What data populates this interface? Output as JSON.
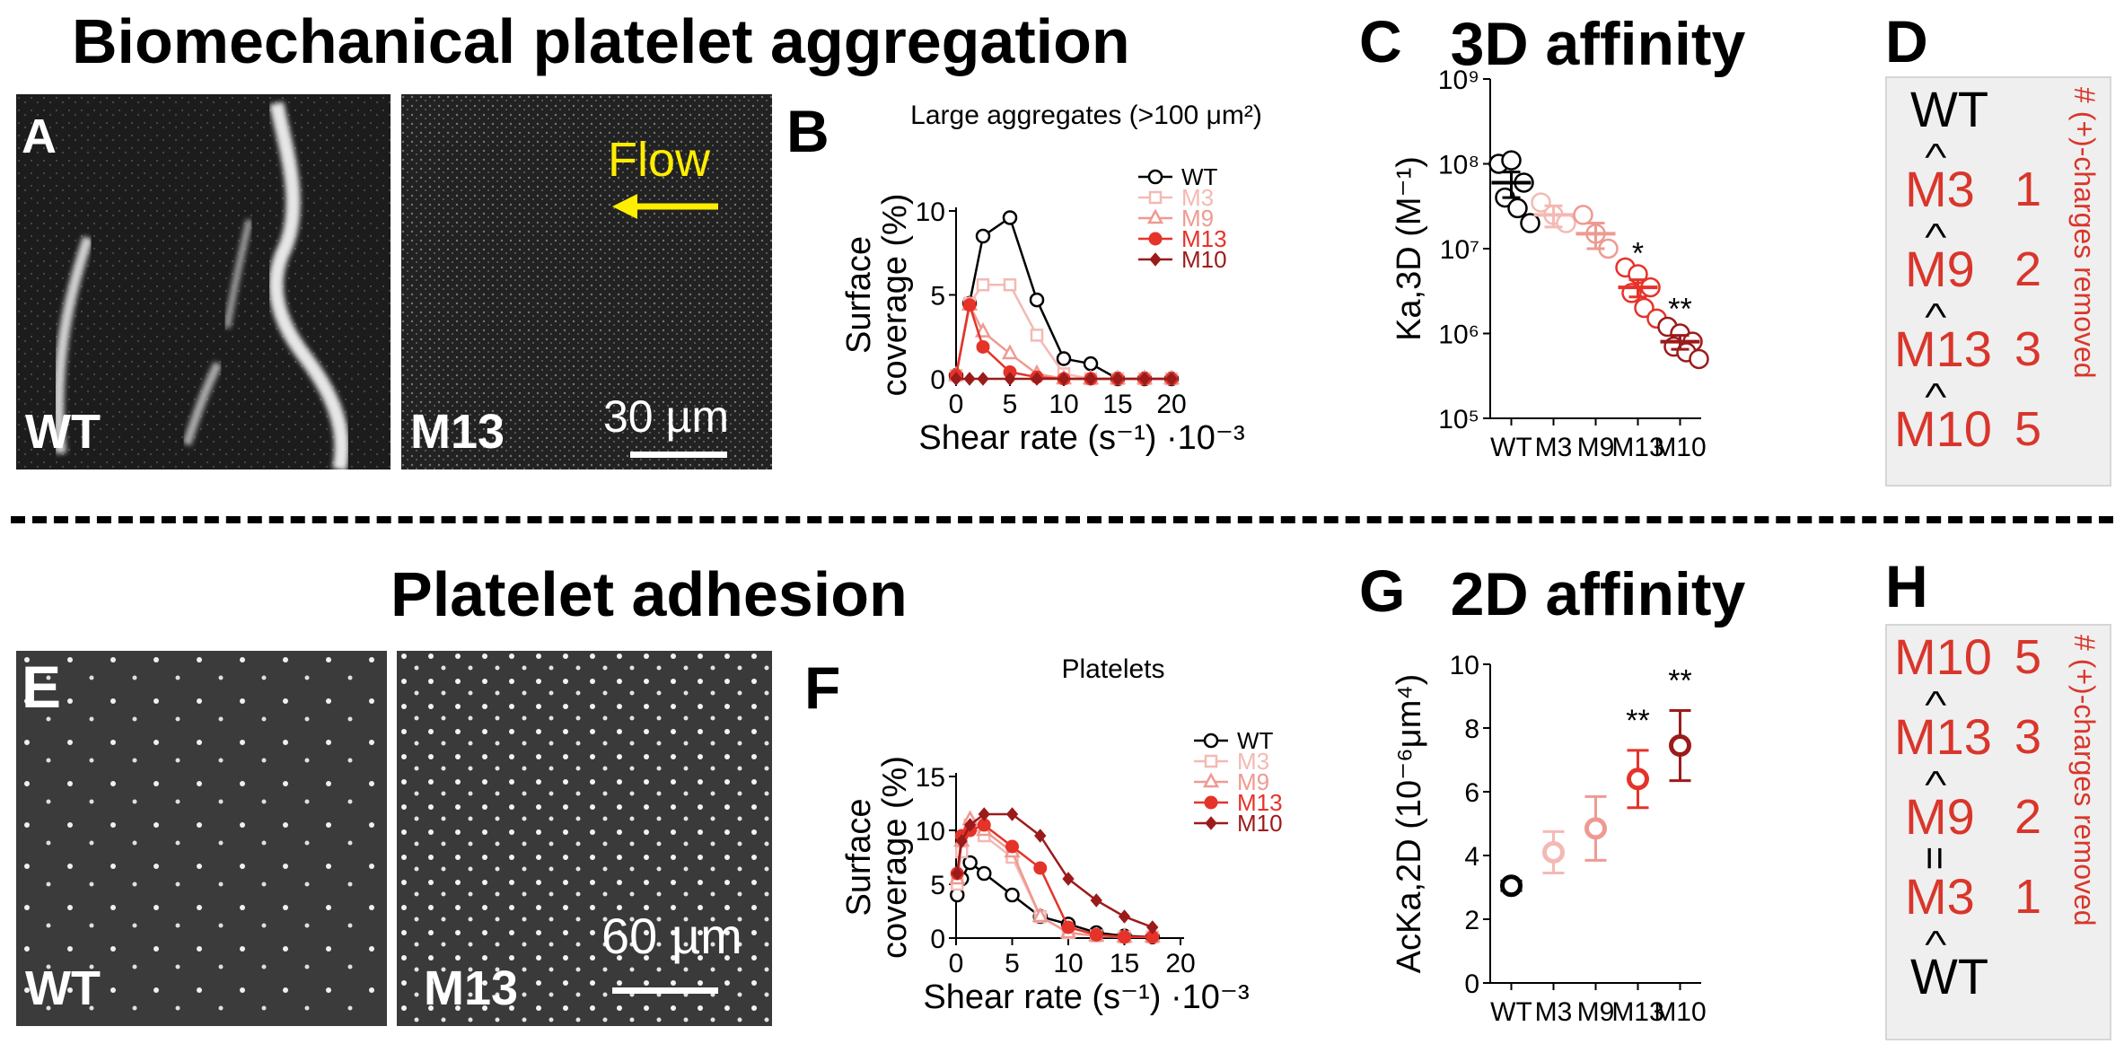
{
  "top": {
    "title": "Biomechanical platelet aggregation",
    "letters": {
      "A": "A",
      "B": "B",
      "C": "C",
      "D": "D"
    },
    "img_left_label": "WT",
    "img_right_label": "M13",
    "flow_label": "Flow",
    "scale_label": "30 µm"
  },
  "bottom": {
    "title": "Platelet adhesion",
    "letters": {
      "E": "E",
      "F": "F",
      "G": "G",
      "H": "H"
    },
    "img_left_label": "WT",
    "img_right_label": "M13",
    "scale_label": "60 µm"
  },
  "order_top": {
    "items": [
      {
        "label": "WT",
        "num": "",
        "sep": ">"
      },
      {
        "label": "M3",
        "num": "1",
        "sep": ">"
      },
      {
        "label": "M9",
        "num": "2",
        "sep": ">"
      },
      {
        "label": "M13",
        "num": "3",
        "sep": ">"
      },
      {
        "label": "M10",
        "num": "5",
        "sep": ""
      }
    ],
    "side_label": "# (+)-charges removed"
  },
  "order_bottom": {
    "items": [
      {
        "label": "M10",
        "num": "5",
        "sep": ">"
      },
      {
        "label": "M13",
        "num": "3",
        "sep": ">"
      },
      {
        "label": "M9",
        "num": "2",
        "sep": "="
      },
      {
        "label": "M3",
        "num": "1",
        "sep": ">"
      },
      {
        "label": "WT",
        "num": "",
        "sep": ""
      }
    ],
    "side_label": "# (+)-charges removed"
  },
  "colors": {
    "WT": "#000000",
    "M3": "#f4b9b4",
    "M9": "#ee9a92",
    "M13": "#e5332a",
    "M10": "#9b1b1b",
    "red_text": "#d9362b",
    "flow": "#ffee00"
  },
  "chart_data": [
    {
      "id": "B",
      "type": "line",
      "title": "Large aggregates (>100 μm²)",
      "xlabel": "Shear rate (s⁻¹) ·10⁻³",
      "ylabel": "Surface coverage (%)",
      "xlim": [
        0,
        20
      ],
      "ylim": [
        0,
        10
      ],
      "xticks": [
        0,
        5,
        10,
        15,
        20
      ],
      "yticks": [
        0,
        5,
        10
      ],
      "x": [
        0,
        1.25,
        2.5,
        5,
        7.5,
        10,
        12.5,
        15,
        17.5,
        20
      ],
      "series": [
        {
          "name": "WT",
          "marker": "circle-open",
          "values": [
            0.2,
            4.5,
            8.5,
            9.6,
            4.7,
            1.2,
            0.9,
            0,
            0,
            0
          ]
        },
        {
          "name": "M3",
          "marker": "square-open",
          "values": [
            0.2,
            4.5,
            5.6,
            5.6,
            2.6,
            0.3,
            0,
            0,
            0,
            0
          ]
        },
        {
          "name": "M9",
          "marker": "triangle-open",
          "values": [
            0.2,
            4.4,
            2.8,
            1.5,
            0.3,
            0,
            0,
            0,
            0,
            0
          ]
        },
        {
          "name": "M13",
          "marker": "circle-filled",
          "values": [
            0.2,
            4.4,
            1.9,
            0.4,
            0.1,
            0,
            0,
            0,
            0,
            0
          ]
        },
        {
          "name": "M10",
          "marker": "diamond-filled",
          "values": [
            0,
            0,
            0,
            0,
            0,
            0,
            0,
            0,
            0,
            0
          ]
        }
      ]
    },
    {
      "id": "C",
      "type": "scatter",
      "title": "3D affinity",
      "ylabel": "Ka,3D (M⁻¹)",
      "scale": "log",
      "categories": [
        "WT",
        "M3",
        "M9",
        "M13",
        "M10"
      ],
      "ylim": [
        100000,
        1000000000
      ],
      "yticks": [
        "10⁵",
        "10⁶",
        "10⁷",
        "10⁸",
        "10⁹"
      ],
      "means": [
        60000000,
        25000000,
        15000000,
        3500000,
        800000
      ],
      "sem": [
        20000000,
        7000000,
        5000000,
        800000,
        150000
      ],
      "points": [
        [
          100000000,
          110000000,
          60000000,
          40000000,
          30000000,
          20000000
        ],
        [
          35000000,
          25000000,
          20000000
        ],
        [
          25000000,
          15000000,
          10000000
        ],
        [
          6000000,
          5000000,
          3500000,
          3000000,
          2000000,
          1500000
        ],
        [
          1200000,
          1000000,
          800000,
          700000,
          600000,
          500000
        ]
      ],
      "annotations": [
        "",
        "",
        "",
        "*",
        "**"
      ]
    },
    {
      "id": "F",
      "type": "line",
      "title": "Platelets",
      "xlabel": "Shear rate (s⁻¹) ·10⁻³",
      "ylabel": "Surface coverage (%)",
      "xlim": [
        0,
        20
      ],
      "ylim": [
        0,
        15
      ],
      "xticks": [
        0,
        5,
        10,
        15,
        20
      ],
      "yticks": [
        0,
        5,
        10,
        15
      ],
      "x": [
        0.1,
        0.5,
        1.25,
        2.5,
        5,
        7.5,
        10,
        12.5,
        15,
        17.5
      ],
      "series": [
        {
          "name": "WT",
          "marker": "circle-open",
          "values": [
            4,
            5.5,
            7,
            6,
            4,
            2,
            1.3,
            0.5,
            0.2,
            0.1
          ]
        },
        {
          "name": "M3",
          "marker": "square-open",
          "values": [
            5,
            8,
            10.5,
            9.5,
            7.5,
            2,
            0.5,
            0.2,
            0.1,
            0.1
          ]
        },
        {
          "name": "M9",
          "marker": "triangle-open",
          "values": [
            5.5,
            9,
            11,
            10,
            8,
            2,
            0.5,
            0.2,
            0.1,
            0.1
          ]
        },
        {
          "name": "M13",
          "marker": "circle-filled",
          "values": [
            6,
            9.5,
            10,
            10.5,
            8.5,
            6.5,
            1,
            0.3,
            0.1,
            0.1
          ]
        },
        {
          "name": "M10",
          "marker": "diamond-filled",
          "values": [
            6,
            9,
            10.5,
            11.5,
            11.5,
            9.5,
            5.5,
            3.5,
            2,
            1
          ]
        }
      ]
    },
    {
      "id": "G",
      "type": "scatter",
      "title": "2D affinity",
      "ylabel": "AcKa,2D (10⁻⁶μm⁴)",
      "categories": [
        "WT",
        "M3",
        "M9",
        "M13",
        "M10"
      ],
      "ylim": [
        0,
        10
      ],
      "yticks": [
        0,
        2,
        4,
        6,
        8,
        10
      ],
      "means": [
        3.05,
        4.1,
        4.85,
        6.4,
        7.45
      ],
      "errors": [
        0.15,
        0.65,
        1.0,
        0.9,
        1.1
      ],
      "annotations": [
        "",
        "",
        "",
        "**",
        "**"
      ]
    }
  ]
}
